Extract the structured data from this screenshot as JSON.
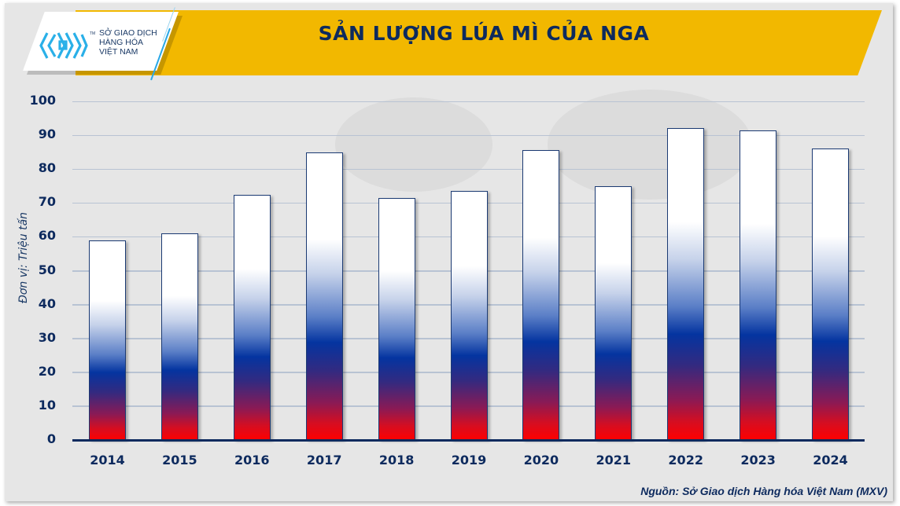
{
  "header": {
    "title": "SẢN LƯỢNG LÚA MÌ CỦA NGA",
    "logo": {
      "icon": "mxv-logo-icon",
      "lines": [
        "SỞ GIAO DỊCH",
        "HÀNG HÓA",
        "VIỆT NAM"
      ],
      "tm": "TM"
    }
  },
  "footer": {
    "source": "Nguồn: Sở Giao dịch Hàng hóa Việt Nam (MXV)"
  },
  "colors": {
    "banner": "#f2b800",
    "title_text": "#0d2a5e",
    "bar_top": "#ffffff",
    "bar_mid": "#0434a0",
    "bar_bottom": "#ff0000"
  },
  "chart_data": {
    "type": "bar",
    "title": "SẢN LƯỢNG LÚA MÌ CỦA NGA",
    "xlabel": "",
    "ylabel": "Đơn vị: Triệu tấn",
    "categories": [
      "2014",
      "2015",
      "2016",
      "2017",
      "2018",
      "2019",
      "2020",
      "2021",
      "2022",
      "2023",
      "2024"
    ],
    "values": [
      59,
      61,
      72.5,
      85,
      71.5,
      73.5,
      85.5,
      75,
      92,
      91.5,
      86
    ],
    "ylim": [
      0,
      100
    ],
    "yticks": [
      "0",
      "10",
      "20",
      "30",
      "40",
      "50",
      "60",
      "70",
      "80",
      "90",
      "100"
    ],
    "grid": true,
    "legend": null,
    "source": "Nguồn: Sở Giao dịch Hàng hóa Việt Nam (MXV)"
  }
}
